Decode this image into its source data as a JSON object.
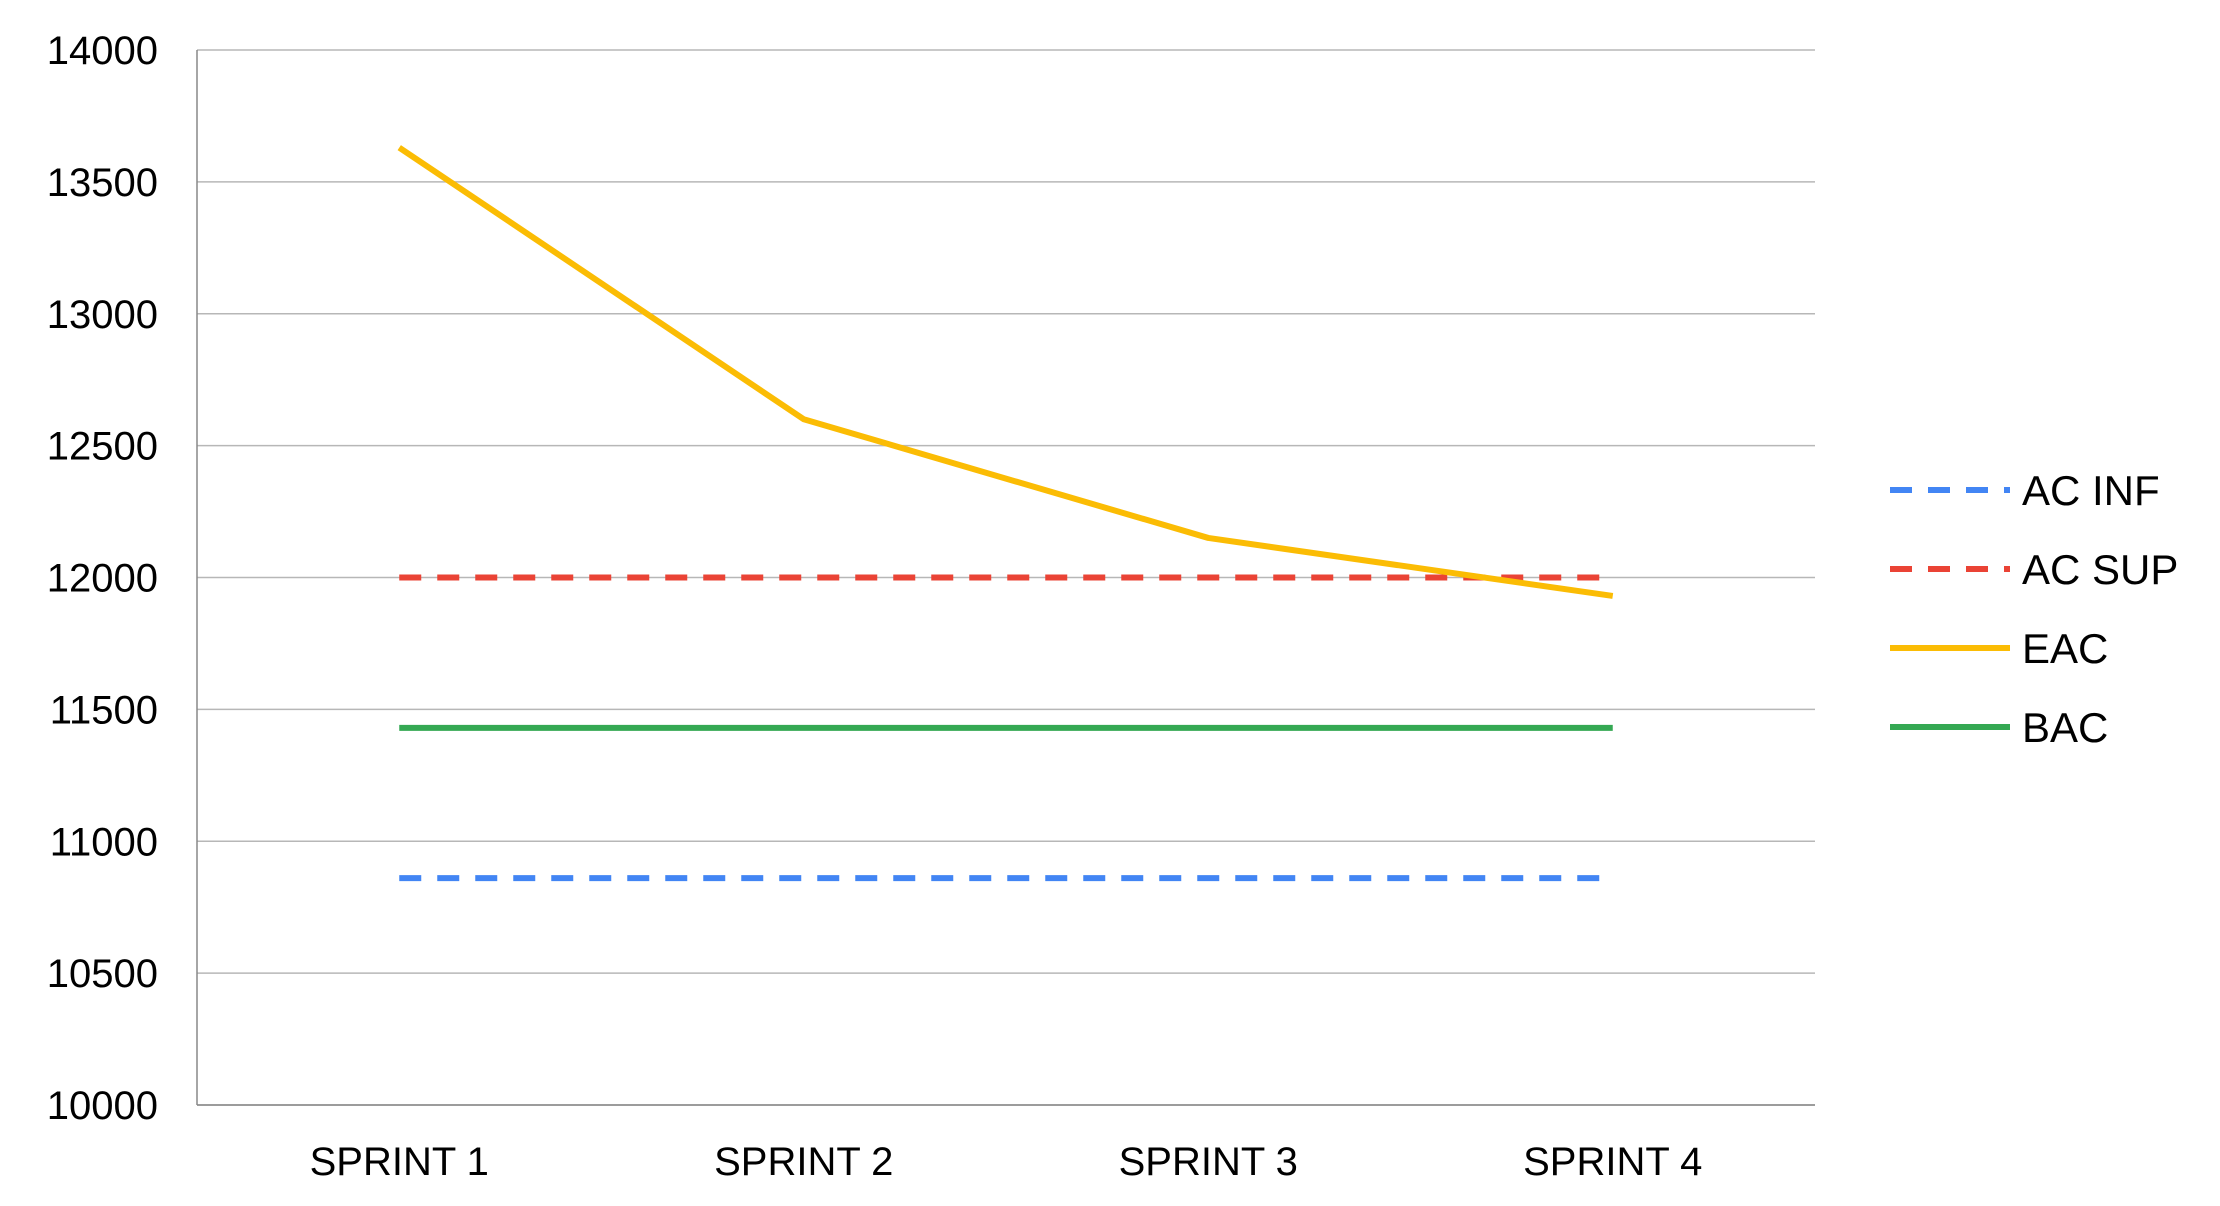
{
  "chart_data": {
    "type": "line",
    "title": "",
    "xlabel": "",
    "ylabel": "",
    "categories": [
      "SPRINT 1",
      "SPRINT 2",
      "SPRINT 3",
      "SPRINT 4"
    ],
    "ylim": [
      10000,
      14000
    ],
    "yticks": [
      10000,
      10500,
      11000,
      11500,
      12000,
      12500,
      13000,
      13500,
      14000
    ],
    "grid": "horizontal",
    "legend_position": "right",
    "series": [
      {
        "name": "AC INF",
        "values": [
          10860,
          10860,
          10860,
          10860
        ],
        "color": "#4285F4",
        "dash": "dashed"
      },
      {
        "name": "AC SUP",
        "values": [
          12000,
          12000,
          12000,
          12000
        ],
        "color": "#EA4335",
        "dash": "dashed"
      },
      {
        "name": "EAC",
        "values": [
          13630,
          12600,
          12150,
          11930
        ],
        "color": "#FBBC04",
        "dash": "solid"
      },
      {
        "name": "BAC",
        "values": [
          11430,
          11430,
          11430,
          11430
        ],
        "color": "#34A853",
        "dash": "solid"
      }
    ]
  }
}
